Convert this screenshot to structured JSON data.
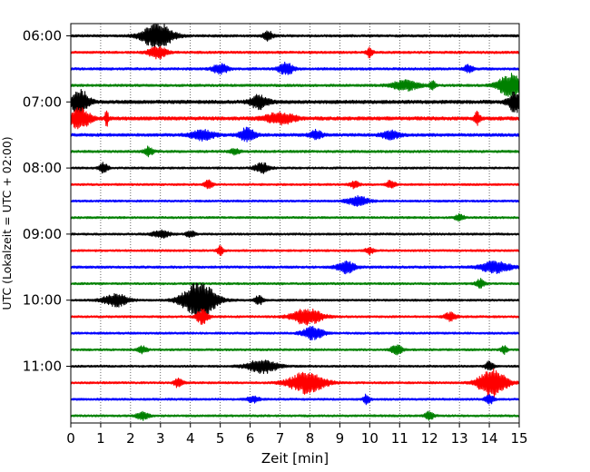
{
  "chart_data": {
    "type": "line",
    "title": "",
    "xlabel": "Zeit  [min]",
    "ylabel": "UTC (Lokalzeit = UTC + 02:00)",
    "xlim": [
      0,
      15
    ],
    "x_ticks": [
      0,
      1,
      2,
      3,
      4,
      5,
      6,
      7,
      8,
      9,
      10,
      11,
      12,
      13,
      14,
      15
    ],
    "x_tick_labels": [
      "0",
      "1",
      "2",
      "3",
      "4",
      "5",
      "6",
      "7",
      "8",
      "9",
      "10",
      "11",
      "12",
      "13",
      "14",
      "15"
    ],
    "y_tick_labels": [
      "06:00",
      "07:00",
      "08:00",
      "09:00",
      "10:00",
      "11:00"
    ],
    "grid": "vertical dotted lines at each minute",
    "trace_interval_minutes": 15,
    "trace_colors": [
      "#000000",
      "#ff0000",
      "#0000ff",
      "#008000"
    ],
    "traces": [
      {
        "utc_start": "06:00",
        "color": "#000000",
        "noise": 0.25,
        "events": [
          {
            "t": 2.9,
            "amp": 2.6,
            "width": 1.0
          },
          {
            "t": 6.6,
            "amp": 1.0,
            "width": 0.3
          }
        ]
      },
      {
        "utc_start": "06:15",
        "color": "#ff0000",
        "noise": 0.25,
        "events": [
          {
            "t": 2.9,
            "amp": 1.2,
            "width": 0.6
          },
          {
            "t": 10.0,
            "amp": 1.0,
            "width": 0.2
          }
        ]
      },
      {
        "utc_start": "06:30",
        "color": "#0000ff",
        "noise": 0.25,
        "events": [
          {
            "t": 5.0,
            "amp": 1.0,
            "width": 0.5
          },
          {
            "t": 7.2,
            "amp": 1.2,
            "width": 0.5
          },
          {
            "t": 13.3,
            "amp": 0.8,
            "width": 0.3
          }
        ]
      },
      {
        "utc_start": "06:45",
        "color": "#008000",
        "noise": 0.25,
        "events": [
          {
            "t": 11.2,
            "amp": 1.0,
            "width": 0.9
          },
          {
            "t": 12.1,
            "amp": 1.0,
            "width": 0.2
          },
          {
            "t": 14.7,
            "amp": 2.3,
            "width": 0.8
          }
        ]
      },
      {
        "utc_start": "07:00",
        "color": "#000000",
        "noise": 0.35,
        "events": [
          {
            "t": 0.3,
            "amp": 2.5,
            "width": 0.6
          },
          {
            "t": 6.3,
            "amp": 1.3,
            "width": 0.6
          },
          {
            "t": 14.9,
            "amp": 2.2,
            "width": 0.5
          }
        ]
      },
      {
        "utc_start": "07:15",
        "color": "#ff0000",
        "noise": 0.35,
        "events": [
          {
            "t": 0.3,
            "amp": 2.0,
            "width": 0.7
          },
          {
            "t": 1.2,
            "amp": 2.0,
            "width": 0.1
          },
          {
            "t": 7.0,
            "amp": 1.1,
            "width": 1.0
          },
          {
            "t": 13.6,
            "amp": 1.2,
            "width": 0.2
          }
        ]
      },
      {
        "utc_start": "07:30",
        "color": "#0000ff",
        "noise": 0.3,
        "events": [
          {
            "t": 4.4,
            "amp": 1.0,
            "width": 0.8
          },
          {
            "t": 5.9,
            "amp": 1.4,
            "width": 0.5
          },
          {
            "t": 8.2,
            "amp": 0.9,
            "width": 0.4
          },
          {
            "t": 10.7,
            "amp": 0.8,
            "width": 0.6
          }
        ]
      },
      {
        "utc_start": "07:45",
        "color": "#008000",
        "noise": 0.25,
        "events": [
          {
            "t": 2.6,
            "amp": 0.9,
            "width": 0.3
          },
          {
            "t": 5.5,
            "amp": 0.6,
            "width": 0.3
          }
        ]
      },
      {
        "utc_start": "08:00",
        "color": "#000000",
        "noise": 0.22,
        "events": [
          {
            "t": 1.1,
            "amp": 1.0,
            "width": 0.3
          },
          {
            "t": 6.4,
            "amp": 1.0,
            "width": 0.5
          }
        ]
      },
      {
        "utc_start": "08:15",
        "color": "#ff0000",
        "noise": 0.22,
        "events": [
          {
            "t": 4.6,
            "amp": 0.8,
            "width": 0.3
          },
          {
            "t": 9.5,
            "amp": 0.8,
            "width": 0.3
          },
          {
            "t": 10.7,
            "amp": 0.8,
            "width": 0.3
          }
        ]
      },
      {
        "utc_start": "08:30",
        "color": "#0000ff",
        "noise": 0.22,
        "events": [
          {
            "t": 9.6,
            "amp": 0.9,
            "width": 0.7
          }
        ]
      },
      {
        "utc_start": "08:45",
        "color": "#008000",
        "noise": 0.22,
        "events": [
          {
            "t": 13.0,
            "amp": 0.7,
            "width": 0.3
          }
        ]
      },
      {
        "utc_start": "09:00",
        "color": "#000000",
        "noise": 0.22,
        "events": [
          {
            "t": 3.0,
            "amp": 0.7,
            "width": 0.6
          },
          {
            "t": 4.0,
            "amp": 0.6,
            "width": 0.3
          }
        ]
      },
      {
        "utc_start": "09:15",
        "color": "#ff0000",
        "noise": 0.22,
        "events": [
          {
            "t": 5.0,
            "amp": 0.9,
            "width": 0.2
          },
          {
            "t": 10.0,
            "amp": 0.6,
            "width": 0.3
          }
        ]
      },
      {
        "utc_start": "09:30",
        "color": "#0000ff",
        "noise": 0.25,
        "events": [
          {
            "t": 9.2,
            "amp": 1.2,
            "width": 0.6
          },
          {
            "t": 14.2,
            "amp": 1.1,
            "width": 1.0
          }
        ]
      },
      {
        "utc_start": "09:45",
        "color": "#008000",
        "noise": 0.22,
        "events": [
          {
            "t": 13.7,
            "amp": 0.9,
            "width": 0.3
          }
        ]
      },
      {
        "utc_start": "10:00",
        "color": "#000000",
        "noise": 0.22,
        "events": [
          {
            "t": 1.5,
            "amp": 1.3,
            "width": 0.8
          },
          {
            "t": 4.3,
            "amp": 3.8,
            "width": 1.1
          },
          {
            "t": 6.3,
            "amp": 0.9,
            "width": 0.3
          }
        ]
      },
      {
        "utc_start": "10:15",
        "color": "#ff0000",
        "noise": 0.22,
        "events": [
          {
            "t": 4.4,
            "amp": 1.5,
            "width": 0.4
          },
          {
            "t": 7.9,
            "amp": 1.6,
            "width": 1.0
          },
          {
            "t": 12.7,
            "amp": 0.8,
            "width": 0.4
          }
        ]
      },
      {
        "utc_start": "10:30",
        "color": "#0000ff",
        "noise": 0.22,
        "events": [
          {
            "t": 8.1,
            "amp": 1.2,
            "width": 0.7
          }
        ]
      },
      {
        "utc_start": "10:45",
        "color": "#008000",
        "noise": 0.22,
        "events": [
          {
            "t": 2.4,
            "amp": 0.7,
            "width": 0.3
          },
          {
            "t": 10.9,
            "amp": 0.9,
            "width": 0.4
          },
          {
            "t": 14.5,
            "amp": 0.8,
            "width": 0.2
          }
        ]
      },
      {
        "utc_start": "11:00",
        "color": "#000000",
        "noise": 0.22,
        "events": [
          {
            "t": 6.4,
            "amp": 1.4,
            "width": 1.0
          },
          {
            "t": 14.0,
            "amp": 0.9,
            "width": 0.3
          }
        ]
      },
      {
        "utc_start": "11:15",
        "color": "#ff0000",
        "noise": 0.22,
        "events": [
          {
            "t": 3.6,
            "amp": 0.9,
            "width": 0.3
          },
          {
            "t": 7.9,
            "amp": 2.2,
            "width": 1.2
          },
          {
            "t": 14.1,
            "amp": 3.0,
            "width": 0.9
          }
        ]
      },
      {
        "utc_start": "11:30",
        "color": "#0000ff",
        "noise": 0.22,
        "events": [
          {
            "t": 6.1,
            "amp": 0.6,
            "width": 0.4
          },
          {
            "t": 9.9,
            "amp": 1.0,
            "width": 0.2
          },
          {
            "t": 14.0,
            "amp": 1.0,
            "width": 0.3
          }
        ]
      },
      {
        "utc_start": "11:45",
        "color": "#008000",
        "noise": 0.22,
        "events": [
          {
            "t": 2.4,
            "amp": 0.8,
            "width": 0.4
          },
          {
            "t": 12.0,
            "amp": 0.8,
            "width": 0.3
          }
        ]
      }
    ]
  }
}
